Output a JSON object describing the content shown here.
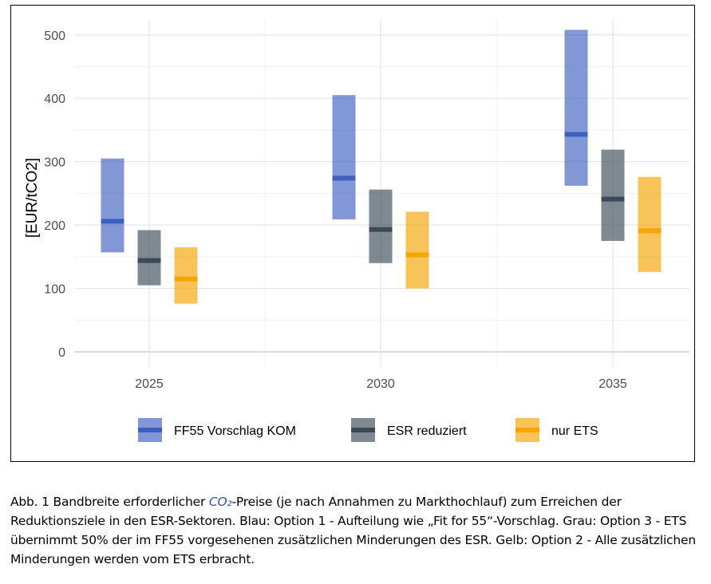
{
  "chart_data": {
    "type": "range-bar",
    "title": "",
    "ylabel": "[EUR/tCO2]",
    "xlabel": "",
    "ylim": [
      0,
      525
    ],
    "yticks": [
      0,
      100,
      200,
      300,
      400,
      500
    ],
    "categories": [
      "2025",
      "2030",
      "2035"
    ],
    "grid": true,
    "legend_position": "bottom",
    "series": [
      {
        "name": "FF55 Vorschlag KOM",
        "color": "#3f5fbf",
        "low": [
          157,
          209,
          262
        ],
        "high": [
          305,
          405,
          508
        ],
        "median": [
          206,
          274,
          343
        ]
      },
      {
        "name": "ESR reduziert",
        "color": "#3b4a56",
        "low": [
          105,
          140,
          175
        ],
        "high": [
          192,
          256,
          319
        ],
        "median": [
          144,
          193,
          241
        ]
      },
      {
        "name": "nur ETS",
        "color": "#f4a500",
        "low": [
          76,
          100,
          126
        ],
        "high": [
          165,
          221,
          276
        ],
        "median": [
          115,
          153,
          191
        ]
      }
    ]
  },
  "caption": {
    "prefix": "Abb. 1 Bandbreite erforderlicher ",
    "co2": "CO₂",
    "suffix": "-Preise (je nach Annahmen zu Markthochlauf) zum Erreichen der Reduktionsziele in den ESR-Sektoren. Blau: Option 1 - Aufteilung wie „Fit for 55“-Vorschlag. Grau: Option 3 - ETS übernimmt 50% der im FF55 vorgesehenen zusätzlichen Minderungen des ESR. Gelb: Option 2 - Alle zusätzlichen Minderungen werden vom ETS erbracht."
  }
}
